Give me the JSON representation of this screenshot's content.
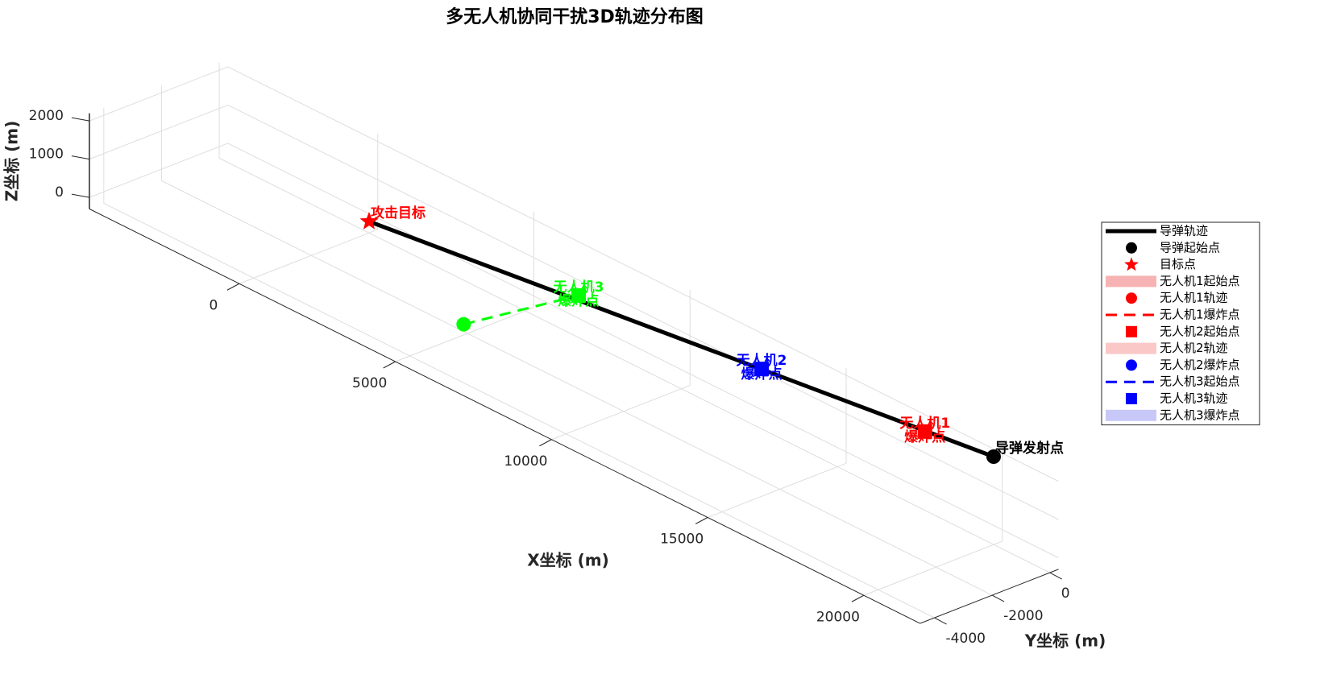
{
  "chart_data": {
    "type": "line3d",
    "title": "多无人机协同干扰3D轨迹分布图",
    "xlabel": "X坐标 (m)",
    "ylabel": "Y坐标 (m)",
    "zlabel": "Z坐标 (m)",
    "xlim": [
      -4800,
      21800
    ],
    "ylim": [
      -4500,
      300
    ],
    "zlim": [
      -300,
      2200
    ],
    "xticks": [
      0,
      5000,
      10000,
      15000,
      20000
    ],
    "yticks": [
      -4000,
      -2000,
      0
    ],
    "zticks": [
      0,
      1000,
      2000
    ],
    "grid": true,
    "series": [
      {
        "name": "导弹轨迹",
        "color": "#000000",
        "dash": "solid",
        "width": 5,
        "x": [
          20000,
          0
        ],
        "y": [
          0,
          0
        ],
        "z": [
          2000,
          0
        ]
      },
      {
        "name": "无人机3轨迹",
        "color": "#00ff00",
        "dash": "dashed",
        "width": 3,
        "x": [
          5800,
          6710
        ],
        "y": [
          -3000,
          0
        ],
        "z": [
          560,
          800
        ]
      }
    ],
    "points": [
      {
        "x": 20000,
        "y": 0,
        "z": 2000,
        "marker": "circle",
        "color": "#000000",
        "label": [
          "导弹发射点"
        ],
        "align": "right"
      },
      {
        "x": 0,
        "y": 0,
        "z": 0,
        "marker": "star",
        "color": "#ff0000",
        "label": [
          "攻击目标"
        ],
        "align": "right"
      },
      {
        "x": 17800,
        "y": 0,
        "z": 1760,
        "marker": "square",
        "color": "#ff0000",
        "label": [
          "无人机1",
          "爆炸点"
        ],
        "align": "center"
      },
      {
        "x": 12570,
        "y": 0,
        "z": 1265,
        "marker": "square",
        "color": "#0000ff",
        "label": [
          "无人机2",
          "爆炸点"
        ],
        "align": "center"
      },
      {
        "x": 6710,
        "y": 0,
        "z": 800,
        "marker": "square",
        "color": "#00ff00",
        "label": [
          "无人机3",
          "爆炸点"
        ],
        "align": "center"
      },
      {
        "x": 5800,
        "y": -3000,
        "z": 560,
        "marker": "circle",
        "color": "#00ff00"
      }
    ],
    "legend_position": "right",
    "legend": [
      {
        "label": "导弹轨迹",
        "symbol": "line",
        "color": "#000000"
      },
      {
        "label": "导弹起始点",
        "symbol": "circle",
        "color": "#000000"
      },
      {
        "label": "目标点",
        "symbol": "star",
        "color": "#ff0000"
      },
      {
        "label": "无人机1起始点",
        "symbol": "patch",
        "color": "#f7b3b3"
      },
      {
        "label": "无人机1轨迹",
        "symbol": "circle",
        "color": "#ff0000"
      },
      {
        "label": "无人机1爆炸点",
        "symbol": "dashed",
        "color": "#ff0000"
      },
      {
        "label": "无人机2起始点",
        "symbol": "square",
        "color": "#ff0000"
      },
      {
        "label": "无人机2轨迹",
        "symbol": "patch",
        "color": "#fbc8c8"
      },
      {
        "label": "无人机2爆炸点",
        "symbol": "circle",
        "color": "#0000ff"
      },
      {
        "label": "无人机3起始点",
        "symbol": "dashed",
        "color": "#0000ff"
      },
      {
        "label": "无人机3轨迹",
        "symbol": "square",
        "color": "#0000ff"
      },
      {
        "label": "无人机3爆炸点",
        "symbol": "patch",
        "color": "#c8c8f8"
      }
    ]
  }
}
